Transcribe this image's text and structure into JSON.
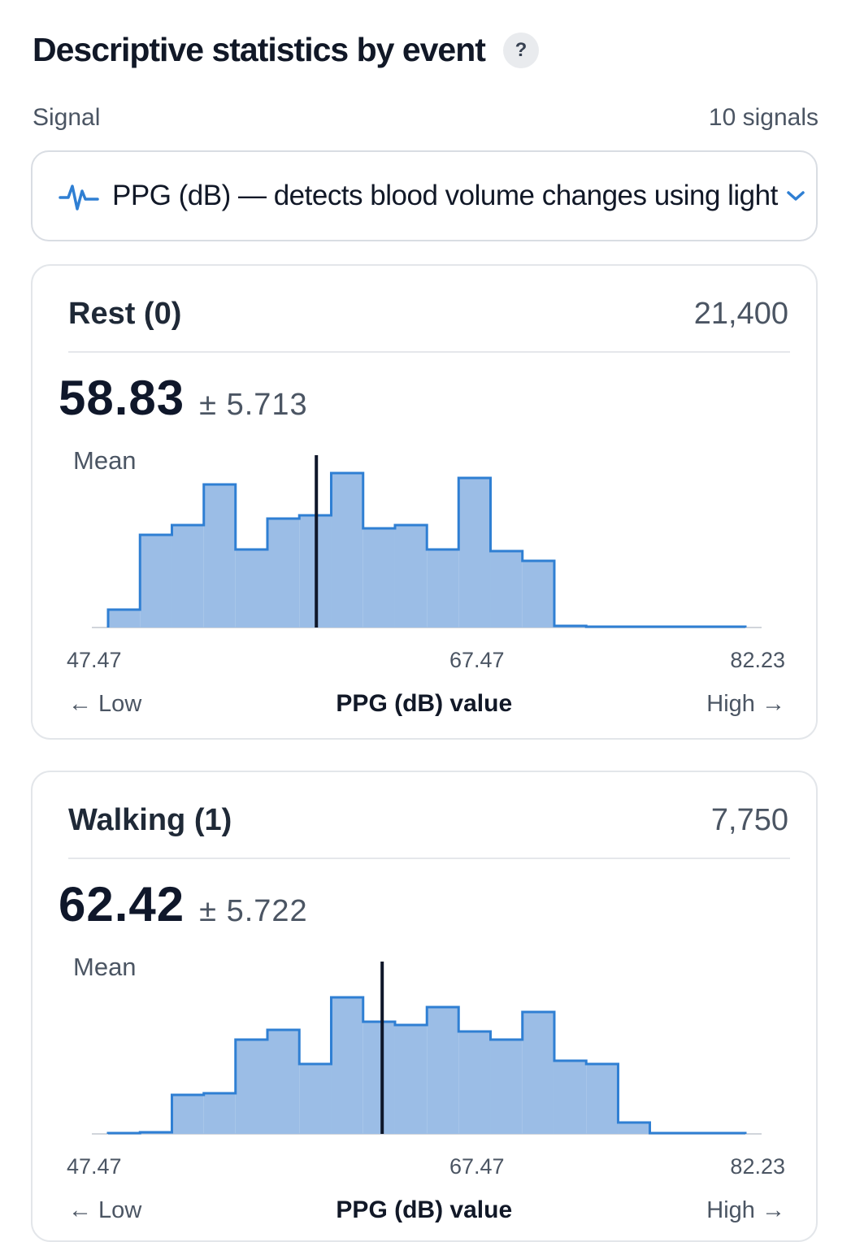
{
  "header": {
    "title": "Descriptive statistics by event",
    "help_label": "?"
  },
  "signal": {
    "label": "Signal",
    "count_text": "10 signals",
    "selected": "PPG (dB) — detects blood volume changes using light",
    "icon": "pulse-icon"
  },
  "colors": {
    "accent": "#2f7fd3",
    "bar_fill": "#9bbde6",
    "bar_stroke": "#2f7fd3",
    "mean_line": "#0f172a"
  },
  "events": [
    {
      "title": "Rest (0)",
      "count": "21,400",
      "mean": "58.83",
      "sd": "± 5.713",
      "mean_label": "Mean",
      "axis": {
        "min": "47.47",
        "mid": "67.47",
        "max": "82.23",
        "low": "← Low",
        "high": "High →",
        "title": "PPG (dB) value"
      }
    },
    {
      "title": "Walking (1)",
      "count": "7,750",
      "mean": "62.42",
      "sd": "± 5.722",
      "mean_label": "Mean",
      "axis": {
        "min": "47.47",
        "mid": "67.47",
        "max": "82.23",
        "low": "← Low",
        "high": "High →",
        "title": "PPG (dB) value"
      }
    }
  ],
  "chart_data": [
    {
      "type": "bar",
      "title": "Rest (0)",
      "xlabel": "PPG (dB) value",
      "xlim": [
        47.47,
        82.23
      ],
      "mean": 58.83,
      "bin_edges": [
        47.47,
        49.21,
        50.95,
        52.69,
        54.42,
        56.16,
        57.9,
        59.64,
        61.38,
        63.12,
        64.86,
        66.59,
        68.33,
        70.07,
        71.81,
        73.55,
        75.29,
        77.02,
        78.76,
        80.5,
        82.23
      ],
      "values": [
        11,
        57,
        63,
        88,
        48,
        67,
        69,
        95,
        61,
        63,
        48,
        92,
        47,
        41,
        1,
        0.5,
        0.5,
        0.5,
        0.5,
        0.5
      ]
    },
    {
      "type": "bar",
      "title": "Walking (1)",
      "xlabel": "PPG (dB) value",
      "xlim": [
        47.47,
        82.23
      ],
      "mean": 62.42,
      "bin_edges": [
        47.47,
        49.21,
        50.95,
        52.69,
        54.42,
        56.16,
        57.9,
        59.64,
        61.38,
        63.12,
        64.86,
        66.59,
        68.33,
        70.07,
        71.81,
        73.55,
        75.29,
        77.02,
        78.76,
        80.5,
        82.23
      ],
      "values": [
        0.5,
        1,
        24,
        25,
        58,
        64,
        43,
        84,
        69,
        67,
        78,
        63,
        58,
        75,
        45,
        43,
        7,
        0.5,
        0.5,
        0.5
      ]
    }
  ]
}
